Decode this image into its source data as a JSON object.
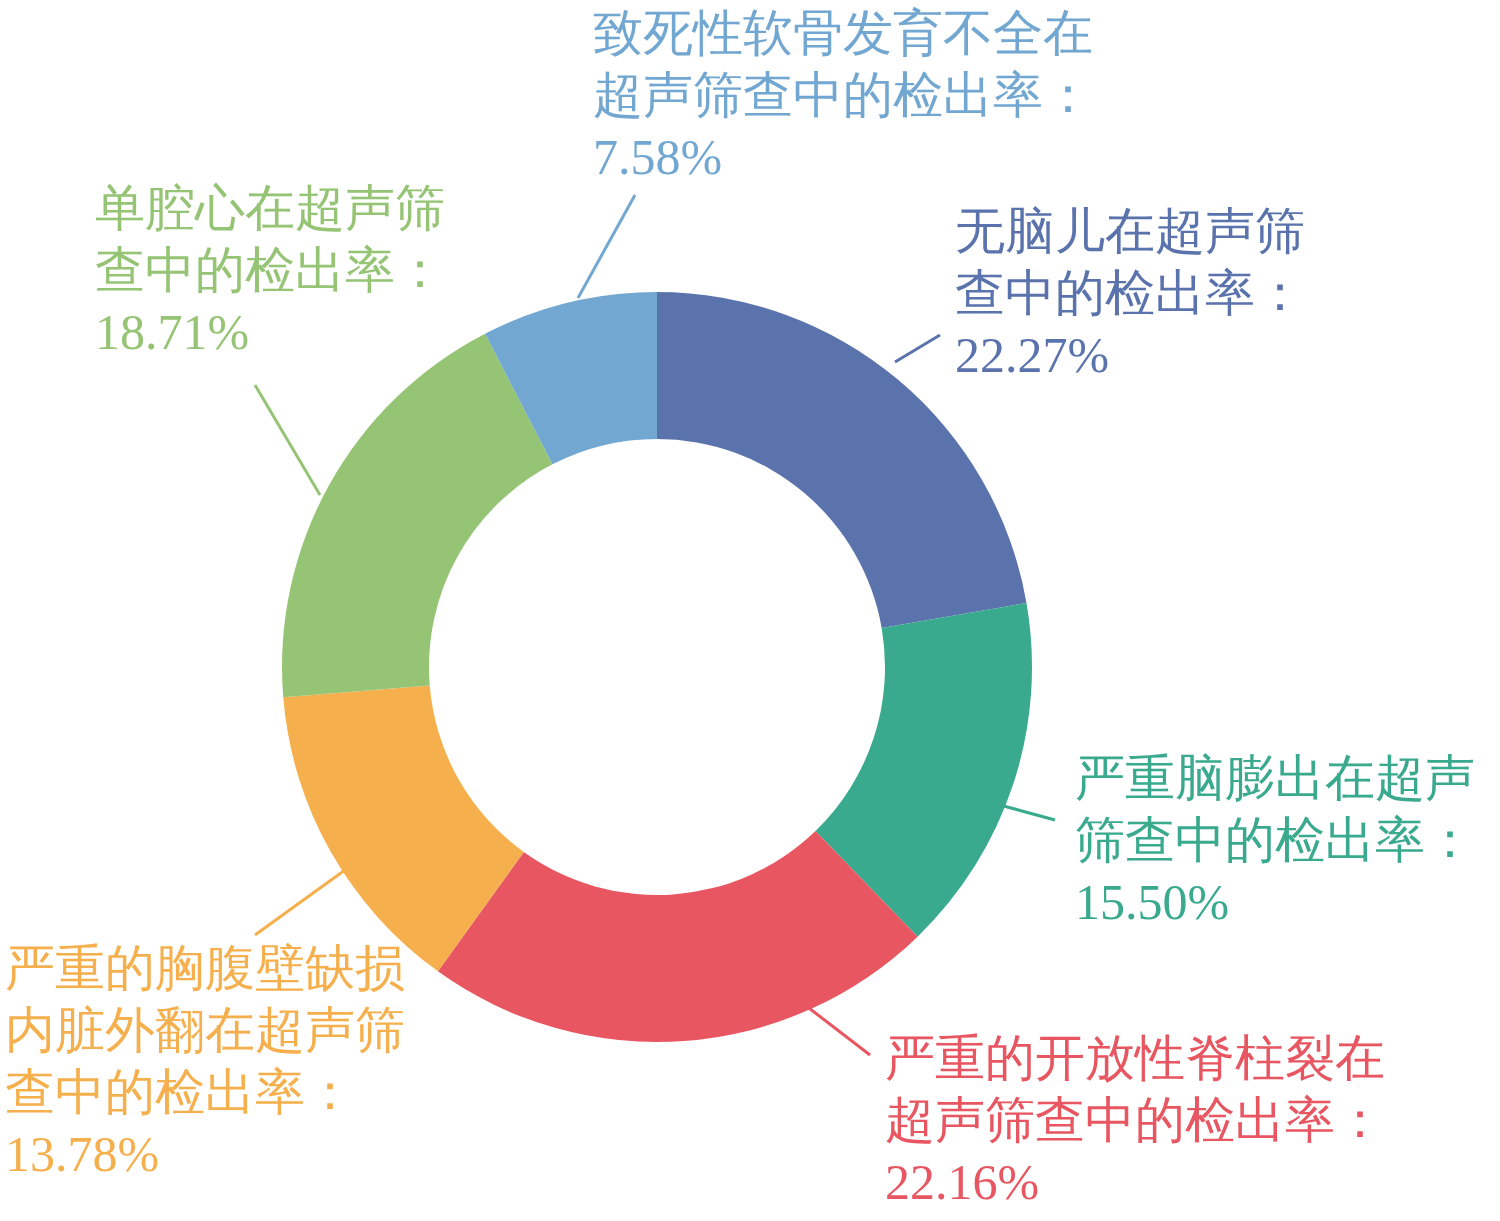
{
  "chart_data": {
    "type": "donut",
    "categories": [
      "无脑儿在超声筛查中的检出率",
      "严重脑膨出在超声筛查中的检出率",
      "严重的开放性脊柱裂在超声筛查中的检出率",
      "严重的胸腹壁缺损内脏外翻在超声筛查中的检出率",
      "单腔心在超声筛查中的检出率",
      "致死性软骨发育不全在超声筛查中的检出率"
    ],
    "values": [
      22.27,
      15.5,
      22.16,
      13.78,
      18.71,
      7.58
    ],
    "value_labels": [
      "：22.27%",
      "：15.50%",
      "：22.16%",
      "：13.78%",
      "：18.71%",
      "：7.58%"
    ],
    "colors": [
      "#5b73ad",
      "#3aaa8f",
      "#e85661",
      "#f5b04d",
      "#96c475",
      "#72a7d2"
    ]
  }
}
